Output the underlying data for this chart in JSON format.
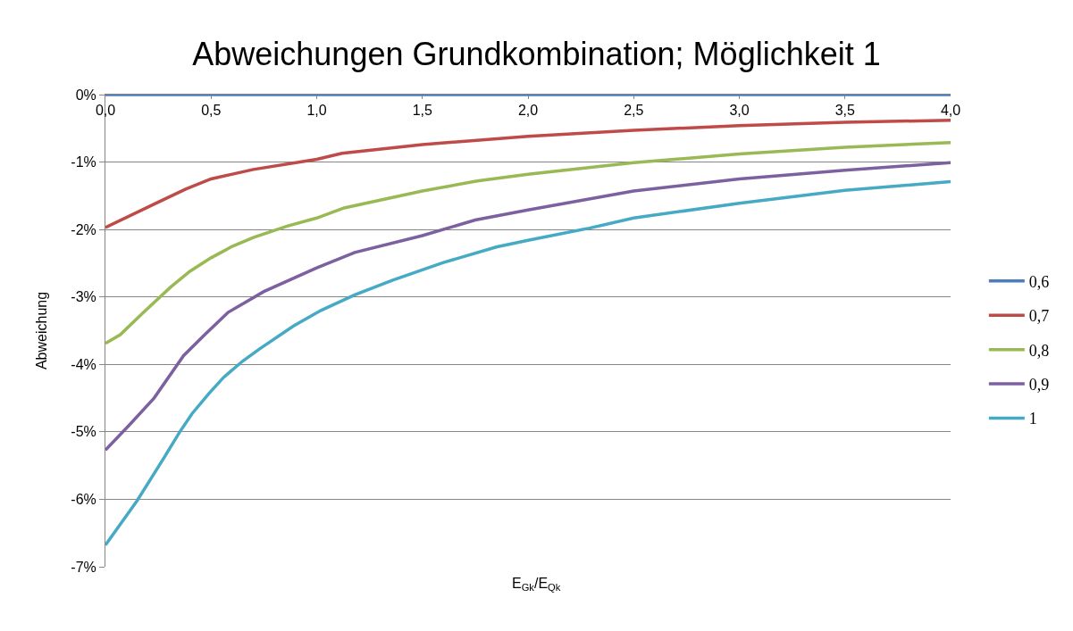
{
  "chart_data": {
    "type": "line",
    "title": "Abweichungen Grundkombination; Möglichkeit 1",
    "xlabel": "E$_{Gk}$/E$_{Qk}$",
    "ylabel": "Abweichung",
    "xlim": [
      0,
      4
    ],
    "xticks": [
      {
        "value": 0,
        "label": "0,0"
      },
      {
        "value": 0.5,
        "label": "0,5"
      },
      {
        "value": 1,
        "label": "1,0"
      },
      {
        "value": 1.5,
        "label": "1,5"
      },
      {
        "value": 2,
        "label": "2,0"
      },
      {
        "value": 2.5,
        "label": "2,5"
      },
      {
        "value": 3,
        "label": "3,0"
      },
      {
        "value": 3.5,
        "label": "3,5"
      },
      {
        "value": 4,
        "label": "4,0"
      }
    ],
    "ylim": [
      -7,
      0
    ],
    "yticks": [
      {
        "value": 0,
        "label": "0%"
      },
      {
        "value": -1,
        "label": "-1%"
      },
      {
        "value": -2,
        "label": "-2%"
      },
      {
        "value": -3,
        "label": "-3%"
      },
      {
        "value": -4,
        "label": "-4%"
      },
      {
        "value": -5,
        "label": "-5%"
      },
      {
        "value": -6,
        "label": "-6%"
      },
      {
        "value": -7,
        "label": "-7%"
      }
    ],
    "grid": "y",
    "legend": "right",
    "line_style": "solid",
    "series": [
      {
        "name": "0,6",
        "color": "#4a7ebb",
        "x": [
          0,
          4
        ],
        "values": [
          0,
          0
        ]
      },
      {
        "name": "0,7",
        "color": "#be4b48",
        "x": [
          0,
          0.24,
          0.38,
          0.5,
          0.7,
          1.0,
          1.12,
          1.5,
          2.0,
          2.5,
          3.0,
          3.5,
          4.0
        ],
        "values": [
          -1.97,
          -1.61,
          -1.4,
          -1.25,
          -1.11,
          -0.96,
          -0.87,
          -0.74,
          -0.62,
          -0.53,
          -0.46,
          -0.41,
          -0.38
        ]
      },
      {
        "name": "0,8",
        "color": "#98b954",
        "x": [
          0,
          0.07,
          0.18,
          0.31,
          0.4,
          0.5,
          0.6,
          0.7,
          0.86,
          1.0,
          1.13,
          1.5,
          1.76,
          2.0,
          2.5,
          3.0,
          3.5,
          4.0
        ],
        "values": [
          -3.69,
          -3.56,
          -3.23,
          -2.85,
          -2.62,
          -2.42,
          -2.25,
          -2.12,
          -1.95,
          -1.83,
          -1.68,
          -1.43,
          -1.28,
          -1.18,
          -1.01,
          -0.88,
          -0.78,
          -0.71
        ]
      },
      {
        "name": "0,9",
        "color": "#7d60a0",
        "x": [
          0,
          0.11,
          0.23,
          0.37,
          0.47,
          0.58,
          0.75,
          1.0,
          1.18,
          1.5,
          1.75,
          2.0,
          2.5,
          3.0,
          3.5,
          4.0
        ],
        "values": [
          -5.27,
          -4.91,
          -4.5,
          -3.87,
          -3.56,
          -3.23,
          -2.92,
          -2.57,
          -2.34,
          -2.09,
          -1.86,
          -1.71,
          -1.43,
          -1.25,
          -1.12,
          -1.01
        ]
      },
      {
        "name": "1",
        "color": "#46aac5",
        "x": [
          0,
          0.15,
          0.28,
          0.35,
          0.41,
          0.49,
          0.56,
          0.65,
          0.73,
          0.89,
          1.02,
          1.18,
          1.36,
          1.6,
          1.85,
          2.0,
          2.29,
          2.5,
          3.0,
          3.5,
          4.0
        ],
        "values": [
          -6.68,
          -6.02,
          -5.37,
          -5.01,
          -4.73,
          -4.43,
          -4.19,
          -3.95,
          -3.77,
          -3.43,
          -3.2,
          -2.97,
          -2.75,
          -2.49,
          -2.26,
          -2.16,
          -1.98,
          -1.83,
          -1.61,
          -1.42,
          -1.29
        ]
      }
    ]
  }
}
